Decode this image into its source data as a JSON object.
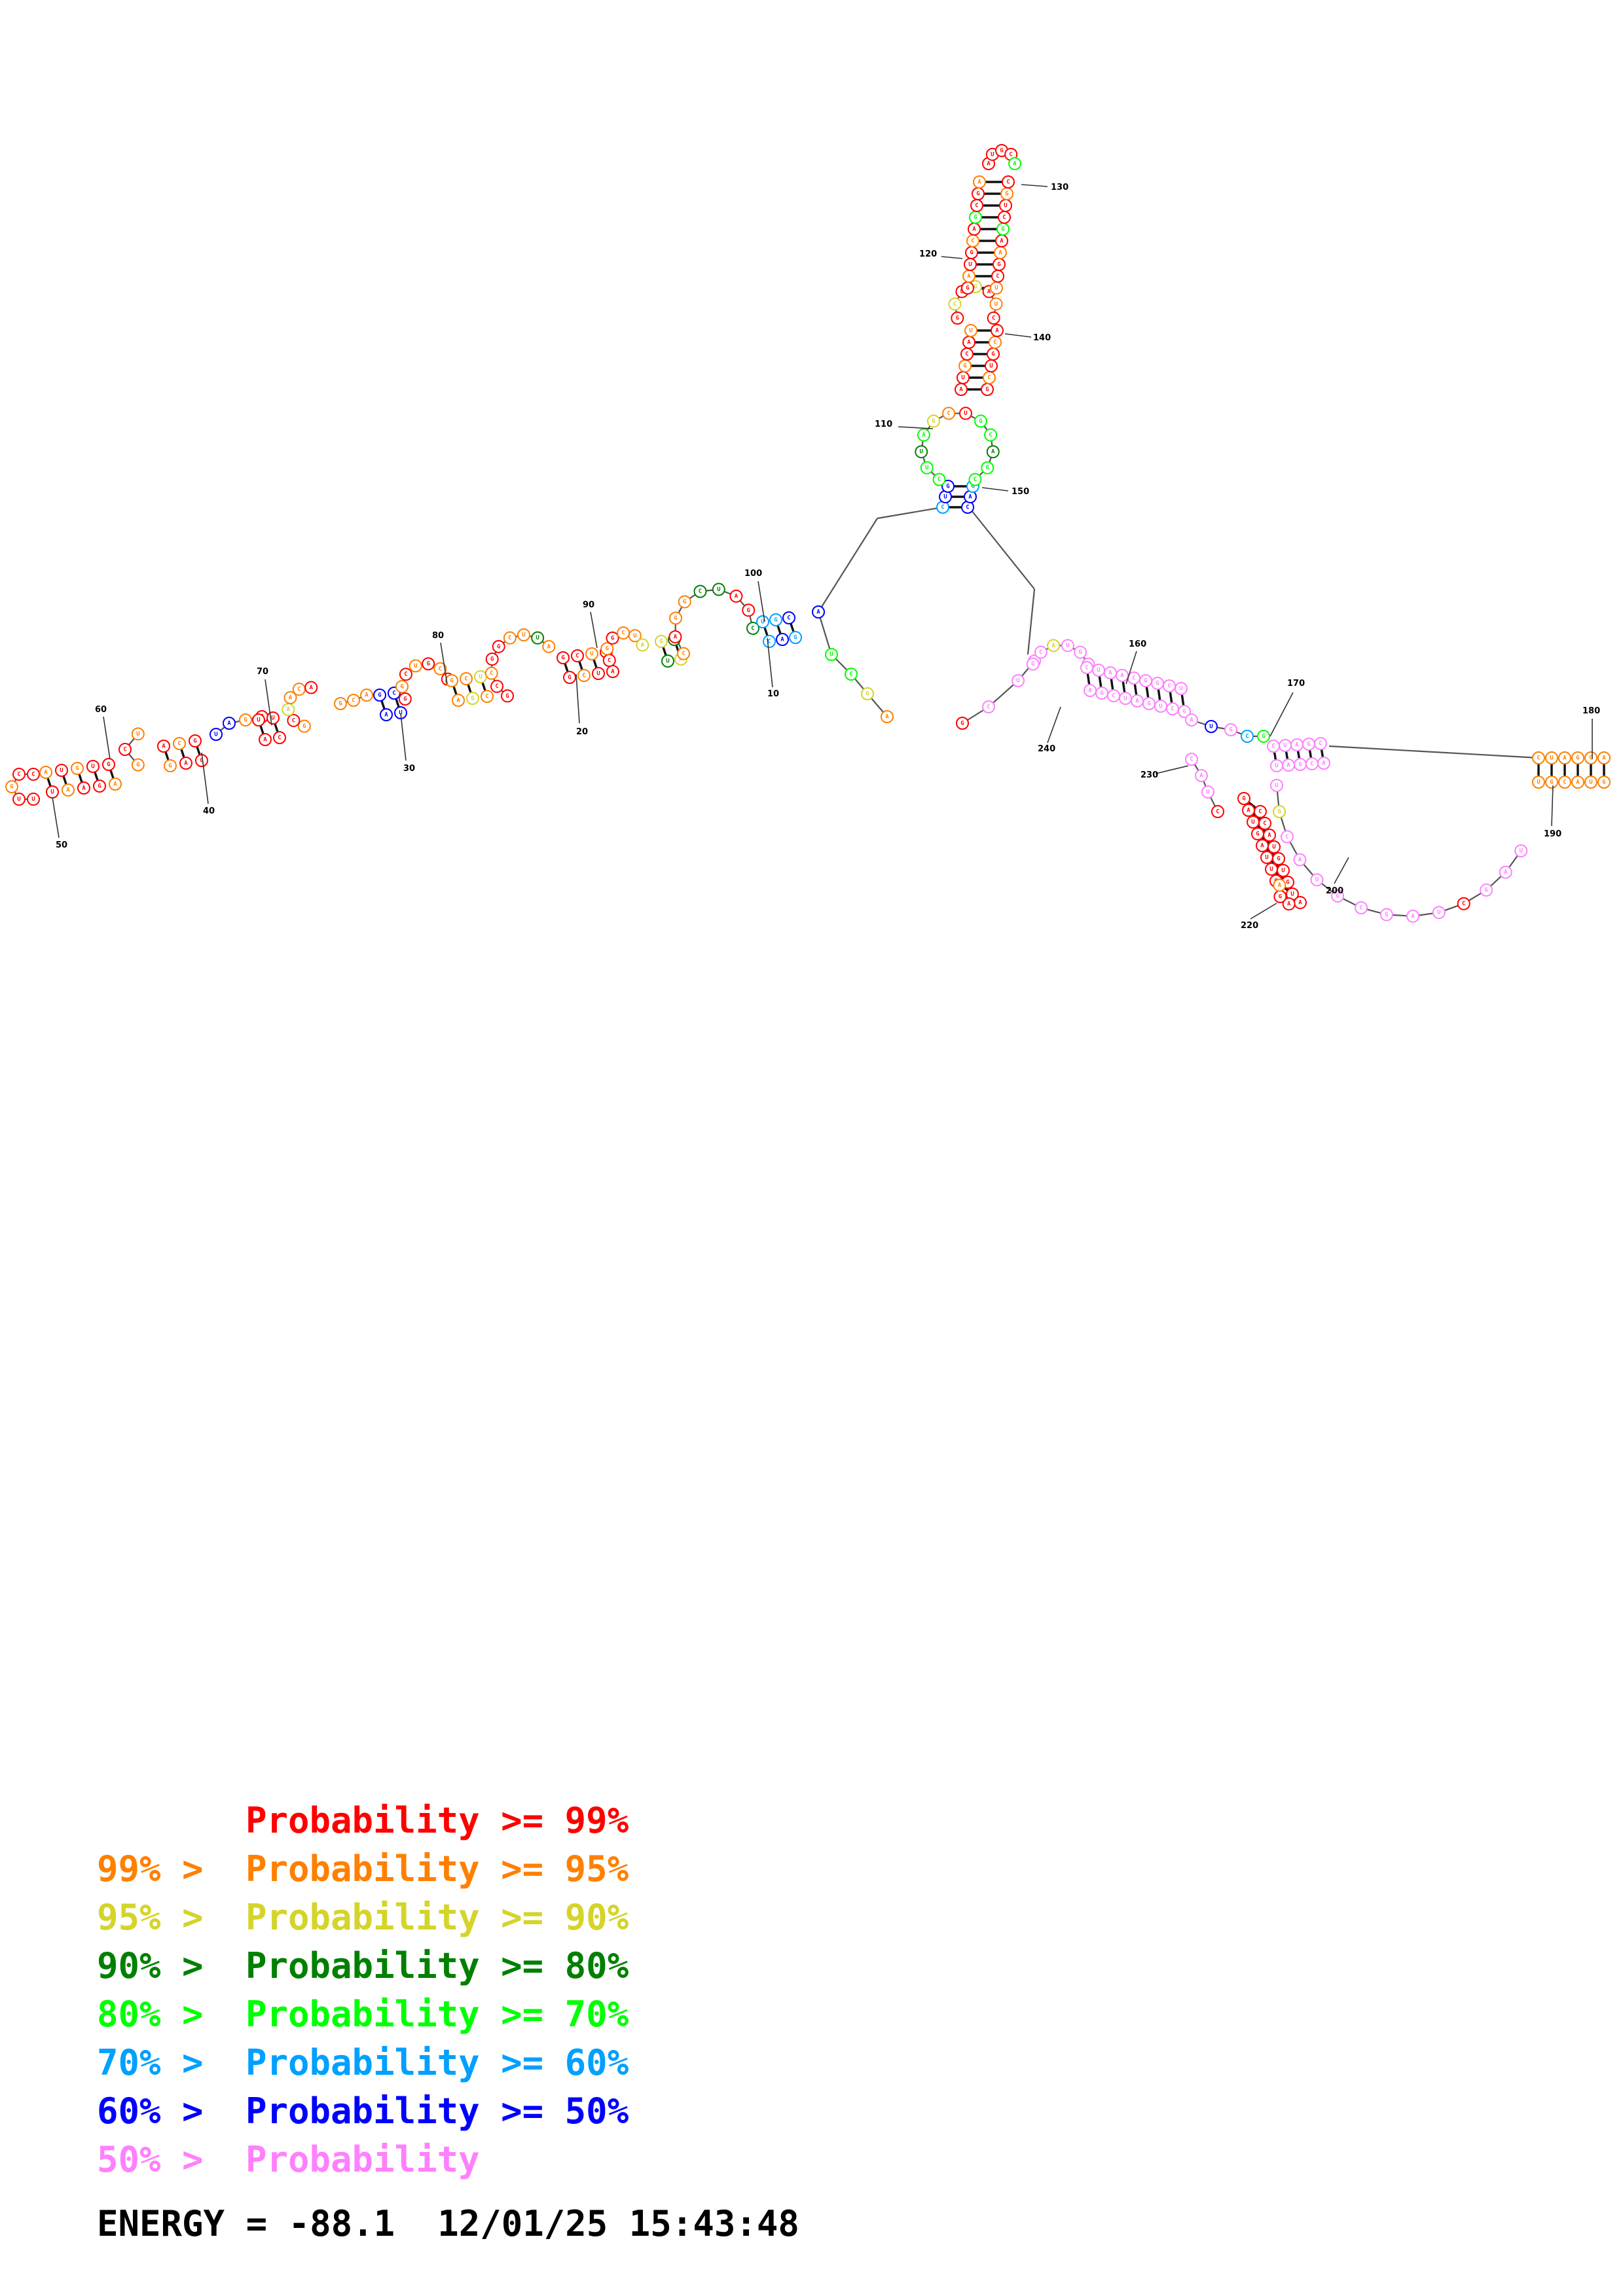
{
  "legend": [
    {
      "prefix": "",
      "label": "Probability",
      "suffix": ">= 99%",
      "color": "#ff0000"
    },
    {
      "prefix": "99% >",
      "label": "Probability",
      "suffix": ">= 95%",
      "color": "#ff8000"
    },
    {
      "prefix": "95% >",
      "label": "Probability",
      "suffix": ">= 90%",
      "color": "#d4d42a"
    },
    {
      "prefix": "90% >",
      "label": "Probability",
      "suffix": ">= 80%",
      "color": "#008000"
    },
    {
      "prefix": "80% >",
      "label": "Probability",
      "suffix": ">= 70%",
      "color": "#00ff00"
    },
    {
      "prefix": "70% >",
      "label": "Probability",
      "suffix": ">= 60%",
      "color": "#00a0ff"
    },
    {
      "prefix": "60% >",
      "label": "Probability",
      "suffix": ">= 50%",
      "color": "#0000ff"
    },
    {
      "prefix": "50% >",
      "label": "Probability",
      "suffix": "",
      "color": "#ff80ff"
    }
  ],
  "energy": {
    "text": "ENERGY = -88.1",
    "timestamp": "12/01/25 15:43:48"
  },
  "position_labels": [
    "10",
    "20",
    "30",
    "40",
    "50",
    "60",
    "70",
    "80",
    "90",
    "100",
    "110",
    "120",
    "130",
    "140",
    "150",
    "160",
    "170",
    "180",
    "190",
    "200",
    "220",
    "230",
    "240"
  ],
  "structure": {
    "bases": "UUGCCAUGUGUAAGAGCUACGGAGUAGGUUACGCAACAGCAGCAUGGCUGCAGCUAGCGCCGGCUUAGCUAGCUACGGCUAGCUACAGGCUAGCUGCCAGAUCGACUGCAGCUUAGCUGCAGCAUGCAUGCUGCAGCUGAUCGAUGCAGCGAUCGAAGCUGCAUGCAGCUAGCAUGGCUAACGGCUAGCUAGUCGAUGCGCUAGCUAGCAUGCAUGCGAUCGAUCUAGCAUGCAUGCAUCGAUGA",
    "probability_classes": [
      "ge99",
      "ge95",
      "ge90",
      "ge80",
      "ge70",
      "ge60",
      "ge50",
      "lt50"
    ],
    "class_colors": {
      "ge99": "#ff0000",
      "ge95": "#ff8000",
      "ge90": "#d4d42a",
      "ge80": "#008000",
      "ge70": "#00ff00",
      "ge60": "#00a0ff",
      "ge50": "#0000ff",
      "lt50": "#ff80ff"
    }
  }
}
